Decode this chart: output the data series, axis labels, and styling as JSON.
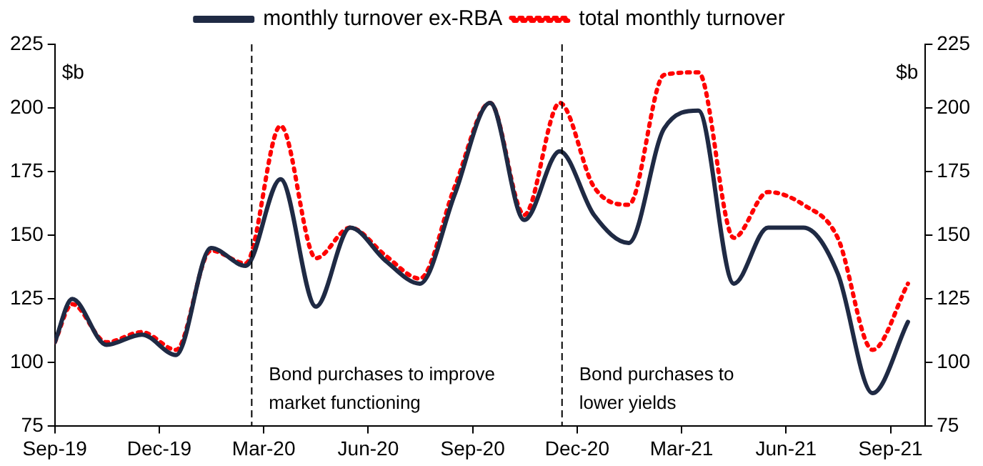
{
  "chart_data": {
    "type": "line",
    "ylabel": "$b",
    "y2label": "$b",
    "x": [
      "2019-09-01",
      "2019-09-16",
      "2019-10-16",
      "2019-11-16",
      "2019-12-16",
      "2020-01-16",
      "2020-02-15",
      "2020-03-16",
      "2020-04-16",
      "2020-05-16",
      "2020-06-16",
      "2020-07-16",
      "2020-08-16",
      "2020-09-16",
      "2020-10-16",
      "2020-11-16",
      "2020-12-16",
      "2021-01-16",
      "2021-02-15",
      "2021-03-16",
      "2021-04-16",
      "2021-05-16",
      "2021-06-16",
      "2021-07-16",
      "2021-08-16",
      "2021-09-16"
    ],
    "series": [
      {
        "name": "monthly turnover ex-RBA",
        "color": "#1f2a44",
        "line_style": "solid",
        "values": [
          108,
          125,
          107,
          111,
          103,
          145,
          138,
          172,
          122,
          153,
          140,
          131,
          166,
          202,
          156,
          183,
          158,
          147,
          192,
          199,
          131,
          153,
          153,
          135,
          88,
          116
        ]
      },
      {
        "name": "total monthly turnover",
        "color": "#ff0000",
        "line_style": "dotted",
        "values": [
          108,
          123,
          108,
          112,
          105,
          144,
          139,
          193,
          141,
          153,
          142,
          133,
          169,
          202,
          158,
          202,
          169,
          162,
          213,
          214,
          149,
          167,
          162,
          149,
          105,
          131
        ]
      }
    ],
    "xlim": [
      "2019-09",
      "2021-10"
    ],
    "xticks": [
      {
        "value": "2019-09",
        "label": "Sep-19"
      },
      {
        "value": "2019-12",
        "label": "Dec-19"
      },
      {
        "value": "2020-03",
        "label": "Mar-20"
      },
      {
        "value": "2020-06",
        "label": "Jun-20"
      },
      {
        "value": "2020-09",
        "label": "Sep-20"
      },
      {
        "value": "2020-12",
        "label": "Dec-20"
      },
      {
        "value": "2021-03",
        "label": "Mar-21"
      },
      {
        "value": "2021-06",
        "label": "Jun-21"
      },
      {
        "value": "2021-09",
        "label": "Sep-21"
      }
    ],
    "ylim": [
      75,
      225
    ],
    "yticks": [
      75,
      100,
      125,
      150,
      175,
      200,
      225
    ],
    "y2lim": [
      75,
      225
    ],
    "y2ticks": [
      75,
      100,
      125,
      150,
      175,
      200,
      225
    ],
    "ref_lines": [
      {
        "axis": "x",
        "value": "2020-02-20",
        "color": "#000000",
        "line_style": "dashed"
      },
      {
        "axis": "x",
        "value": "2020-11-18",
        "color": "#000000",
        "line_style": "dashed"
      }
    ],
    "annotations": [
      "Bond purchases to improve\nmarket functioning",
      "Bond purchases to\nlower yields"
    ],
    "legend": "top",
    "grid": false,
    "marker": "none"
  }
}
